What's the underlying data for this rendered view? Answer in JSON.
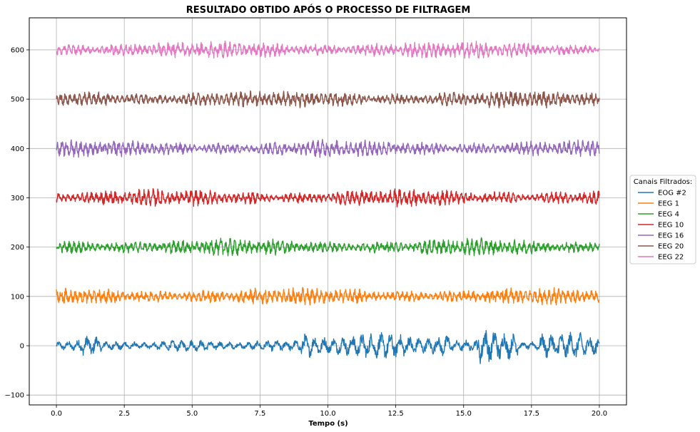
{
  "chart_data": {
    "type": "line",
    "title": "RESULTADO OBTIDO APÓS O PROCESSO DE FILTRAGEM",
    "xlabel": "Tempo (s)",
    "ylabel": "",
    "xlim": [
      -1.0,
      21.0
    ],
    "ylim": [
      -120,
      665
    ],
    "xticks": [
      0.0,
      2.5,
      5.0,
      7.5,
      10.0,
      12.5,
      15.0,
      17.5,
      20.0
    ],
    "xtick_labels": [
      "0.0",
      "2.5",
      "5.0",
      "7.5",
      "10.0",
      "12.5",
      "15.0",
      "17.5",
      "20.0"
    ],
    "yticks": [
      -100,
      0,
      100,
      200,
      300,
      400,
      500,
      600
    ],
    "ytick_labels": [
      "−100",
      "0",
      "100",
      "200",
      "300",
      "400",
      "500",
      "600"
    ],
    "grid": true,
    "legend_title": "Canais Filtrados:",
    "legend_position": "center-right outside",
    "x_range": [
      0,
      20
    ],
    "series": [
      {
        "name": "EOG #2",
        "color": "#1f77b4",
        "offset": 0,
        "amplitude": 10,
        "min": -85,
        "max": 78
      },
      {
        "name": "EEG 1",
        "color": "#ff7f0e",
        "offset": 100,
        "amplitude": 10,
        "min": 80,
        "max": 125
      },
      {
        "name": "EEG 4",
        "color": "#2ca02c",
        "offset": 200,
        "amplitude": 10,
        "min": 175,
        "max": 228
      },
      {
        "name": "EEG 10",
        "color": "#d62728",
        "offset": 300,
        "amplitude": 10,
        "min": 272,
        "max": 328
      },
      {
        "name": "EEG 16",
        "color": "#9467bd",
        "offset": 400,
        "amplitude": 10,
        "min": 375,
        "max": 430
      },
      {
        "name": "EEG 20",
        "color": "#8c564b",
        "offset": 500,
        "amplitude": 10,
        "min": 473,
        "max": 530
      },
      {
        "name": "EEG 22",
        "color": "#e377c2",
        "offset": 600,
        "amplitude": 10,
        "min": 567,
        "max": 630
      }
    ]
  }
}
